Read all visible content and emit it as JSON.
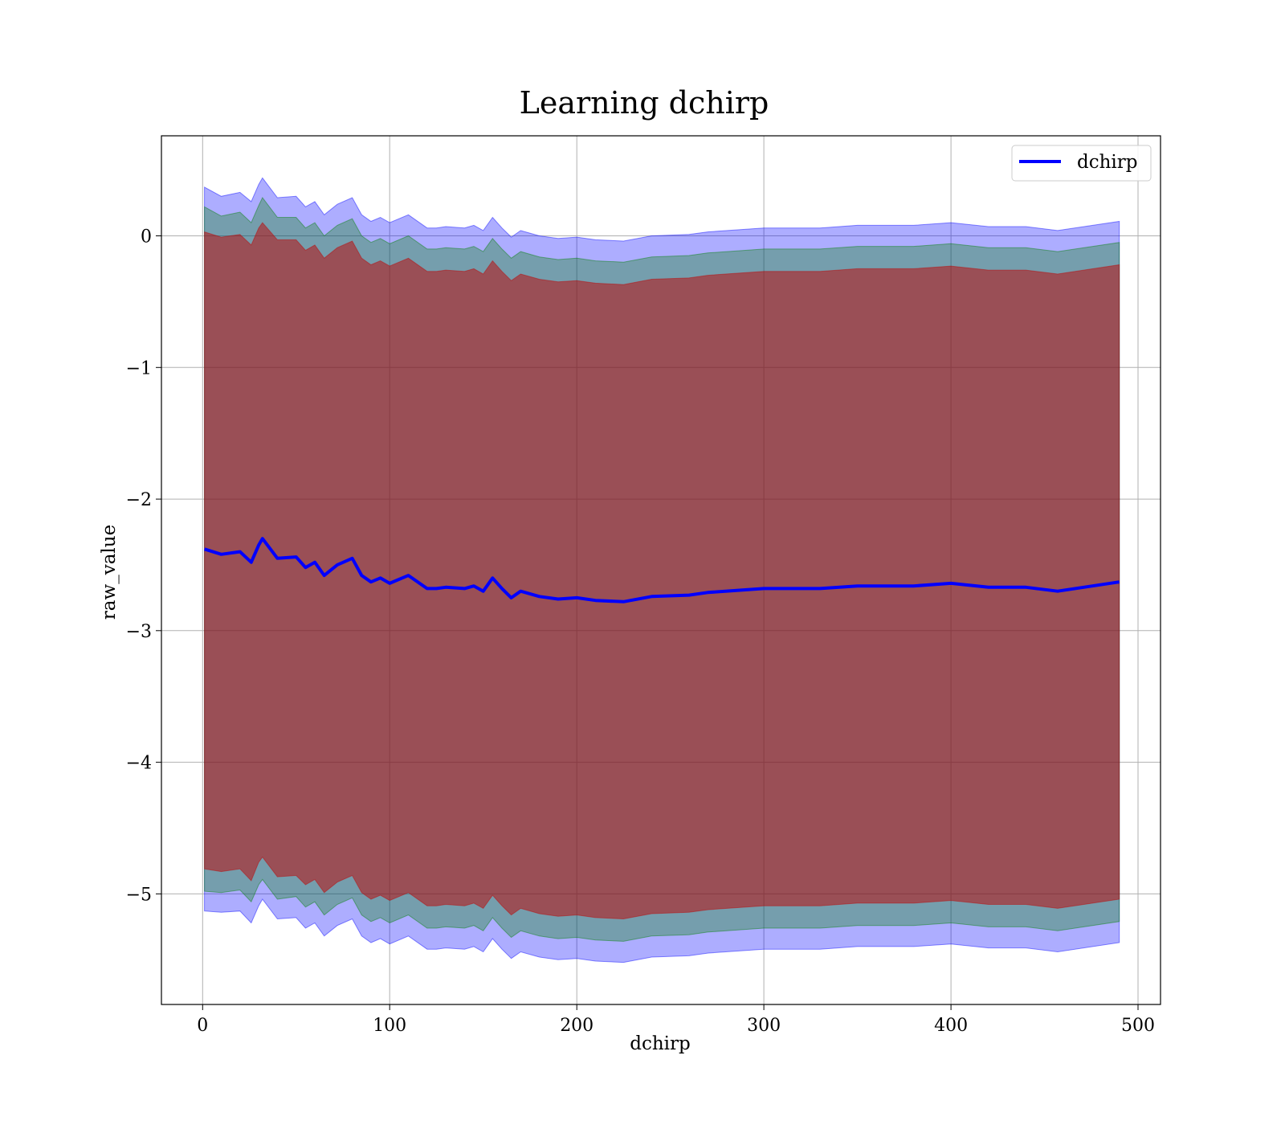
{
  "chart_data": {
    "type": "area",
    "title": "Learning dchirp",
    "xlabel": "dchirp",
    "ylabel": "raw_value",
    "xlim": [
      -22,
      512
    ],
    "ylim": [
      -5.84,
      0.76
    ],
    "x_ticks": [
      0,
      100,
      200,
      300,
      400,
      500
    ],
    "x_tick_labels": [
      "0",
      "100",
      "200",
      "300",
      "400",
      "500"
    ],
    "y_ticks": [
      0,
      -1,
      -2,
      -3,
      -4,
      -5
    ],
    "y_tick_labels": [
      "0",
      "−1",
      "−2",
      "−3",
      "−4",
      "−5"
    ],
    "grid": true,
    "legend": {
      "position": "top-right",
      "entries": [
        "dchirp"
      ]
    },
    "x": [
      1,
      10,
      20,
      26,
      30,
      32,
      40,
      50,
      55,
      60,
      65,
      72,
      80,
      85,
      90,
      95,
      100,
      110,
      120,
      125,
      130,
      140,
      145,
      150,
      155,
      160,
      165,
      170,
      180,
      190,
      200,
      210,
      225,
      240,
      260,
      270,
      300,
      330,
      350,
      380,
      400,
      420,
      440,
      457,
      490
    ],
    "series": [
      {
        "name": "dchirp",
        "color": "#0000ff",
        "values": [
          -2.38,
          -2.42,
          -2.4,
          -2.48,
          -2.35,
          -2.3,
          -2.45,
          -2.44,
          -2.52,
          -2.48,
          -2.58,
          -2.5,
          -2.45,
          -2.58,
          -2.63,
          -2.6,
          -2.64,
          -2.58,
          -2.68,
          -2.68,
          -2.67,
          -2.68,
          -2.66,
          -2.7,
          -2.6,
          -2.68,
          -2.75,
          -2.7,
          -2.74,
          -2.76,
          -2.75,
          -2.77,
          -2.78,
          -2.74,
          -2.73,
          -2.71,
          -2.68,
          -2.68,
          -2.66,
          -2.66,
          -2.64,
          -2.67,
          -2.67,
          -2.7,
          -2.63
        ]
      }
    ],
    "bands": [
      {
        "sigma": 3,
        "color": "#0000ff",
        "opacity": 0.32,
        "upper": [
          0.37,
          0.3,
          0.33,
          0.26,
          0.39,
          0.44,
          0.29,
          0.3,
          0.22,
          0.26,
          0.16,
          0.24,
          0.29,
          0.16,
          0.11,
          0.14,
          0.1,
          0.16,
          0.06,
          0.06,
          0.07,
          0.06,
          0.08,
          0.04,
          0.14,
          0.06,
          -0.01,
          0.04,
          0.0,
          -0.02,
          -0.01,
          -0.03,
          -0.04,
          0.0,
          0.01,
          0.03,
          0.06,
          0.06,
          0.08,
          0.08,
          0.1,
          0.07,
          0.07,
          0.04,
          0.11
        ],
        "lower": [
          -5.13,
          -5.14,
          -5.13,
          -5.22,
          -5.09,
          -5.04,
          -5.19,
          -5.18,
          -5.26,
          -5.22,
          -5.32,
          -5.24,
          -5.19,
          -5.32,
          -5.37,
          -5.34,
          -5.38,
          -5.32,
          -5.42,
          -5.42,
          -5.41,
          -5.42,
          -5.4,
          -5.44,
          -5.34,
          -5.42,
          -5.49,
          -5.44,
          -5.48,
          -5.5,
          -5.49,
          -5.51,
          -5.52,
          -5.48,
          -5.47,
          -5.45,
          -5.42,
          -5.42,
          -5.4,
          -5.4,
          -5.38,
          -5.41,
          -5.41,
          -5.44,
          -5.37
        ]
      },
      {
        "sigma": 2,
        "color": "#008000",
        "opacity": 0.32,
        "upper": [
          0.22,
          0.15,
          0.18,
          0.1,
          0.23,
          0.29,
          0.14,
          0.14,
          0.06,
          0.1,
          0.0,
          0.08,
          0.13,
          0.0,
          -0.05,
          -0.02,
          -0.06,
          0.0,
          -0.1,
          -0.1,
          -0.09,
          -0.1,
          -0.08,
          -0.12,
          -0.02,
          -0.1,
          -0.17,
          -0.12,
          -0.16,
          -0.18,
          -0.17,
          -0.19,
          -0.2,
          -0.16,
          -0.15,
          -0.13,
          -0.1,
          -0.1,
          -0.08,
          -0.08,
          -0.06,
          -0.09,
          -0.09,
          -0.12,
          -0.05
        ],
        "lower": [
          -4.98,
          -4.99,
          -4.97,
          -5.06,
          -4.93,
          -4.89,
          -5.04,
          -5.02,
          -5.1,
          -5.06,
          -5.16,
          -5.08,
          -5.03,
          -5.16,
          -5.21,
          -5.18,
          -5.22,
          -5.16,
          -5.26,
          -5.26,
          -5.25,
          -5.26,
          -5.24,
          -5.28,
          -5.18,
          -5.26,
          -5.33,
          -5.28,
          -5.32,
          -5.34,
          -5.33,
          -5.35,
          -5.36,
          -5.32,
          -5.31,
          -5.29,
          -5.26,
          -5.26,
          -5.24,
          -5.24,
          -5.22,
          -5.25,
          -5.25,
          -5.28,
          -5.21
        ]
      },
      {
        "sigma": 1,
        "color": "#c00000",
        "opacity": 0.5,
        "upper": [
          0.03,
          -0.01,
          0.01,
          -0.07,
          0.06,
          0.1,
          -0.03,
          -0.03,
          -0.11,
          -0.07,
          -0.17,
          -0.09,
          -0.04,
          -0.17,
          -0.22,
          -0.19,
          -0.23,
          -0.17,
          -0.27,
          -0.27,
          -0.26,
          -0.27,
          -0.25,
          -0.29,
          -0.19,
          -0.27,
          -0.34,
          -0.29,
          -0.33,
          -0.35,
          -0.34,
          -0.36,
          -0.37,
          -0.33,
          -0.32,
          -0.3,
          -0.27,
          -0.27,
          -0.25,
          -0.25,
          -0.23,
          -0.26,
          -0.26,
          -0.29,
          -0.22
        ],
        "lower": [
          -4.81,
          -4.83,
          -4.81,
          -4.9,
          -4.76,
          -4.72,
          -4.87,
          -4.86,
          -4.93,
          -4.89,
          -4.99,
          -4.91,
          -4.86,
          -4.99,
          -5.04,
          -5.01,
          -5.05,
          -4.99,
          -5.09,
          -5.09,
          -5.08,
          -5.09,
          -5.07,
          -5.11,
          -5.01,
          -5.09,
          -5.16,
          -5.11,
          -5.15,
          -5.17,
          -5.16,
          -5.18,
          -5.19,
          -5.15,
          -5.14,
          -5.12,
          -5.09,
          -5.09,
          -5.07,
          -5.07,
          -5.05,
          -5.08,
          -5.08,
          -5.11,
          -5.04
        ]
      }
    ]
  }
}
